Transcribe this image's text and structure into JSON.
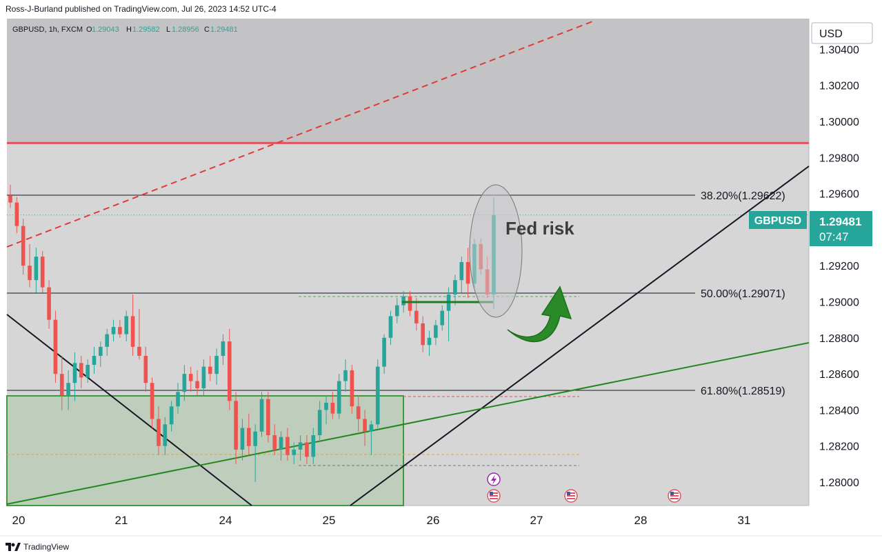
{
  "header": {
    "published_by": "Ross-J-Burland published on TradingView.com, Jul 26, 2023 14:52 UTC-4"
  },
  "footer": {
    "brand": "TradingView"
  },
  "legend": {
    "symbol_line": "GBPUSD, 1h, FXCM",
    "o_label": "O",
    "o_value": "1.29043",
    "h_label": "H",
    "h_value": "1.29582",
    "l_label": "L",
    "l_value": "1.28956",
    "c_label": "C",
    "c_value": "1.29481"
  },
  "currency": "USD",
  "price_badge": {
    "symbol": "GBPUSD",
    "price": "1.29481",
    "countdown": "07:47"
  },
  "annotation": {
    "text": "Fed risk"
  },
  "fib_levels": [
    {
      "label": "38.20%(1.29622)",
      "price": 1.29622
    },
    {
      "label": "50.00%(1.29071)",
      "price": 1.29071
    },
    {
      "label": "61.80%(1.28519)",
      "price": 1.28519
    }
  ],
  "chart_data": {
    "type": "candlestick",
    "symbol": "GBPUSD",
    "interval": "1h",
    "y_ticks": [
      "1.30400",
      "1.30200",
      "1.30000",
      "1.29800",
      "1.29600",
      "1.29400",
      "1.29200",
      "1.29000",
      "1.28800",
      "1.28600",
      "1.28400",
      "1.28200",
      "1.28000"
    ],
    "x_ticks": [
      "20",
      "21",
      "24",
      "25",
      "26",
      "27",
      "28",
      "31"
    ],
    "ylim": [
      1.2787,
      1.3057
    ],
    "resistance_price": 1.2988,
    "last_price": 1.29481,
    "candles": [
      {
        "o": 1.2959,
        "h": 1.2965,
        "l": 1.2952,
        "c": 1.2955
      },
      {
        "o": 1.2955,
        "h": 1.2958,
        "l": 1.2938,
        "c": 1.2942
      },
      {
        "o": 1.2942,
        "h": 1.2946,
        "l": 1.2915,
        "c": 1.292
      },
      {
        "o": 1.292,
        "h": 1.2932,
        "l": 1.2908,
        "c": 1.2912
      },
      {
        "o": 1.2912,
        "h": 1.293,
        "l": 1.2905,
        "c": 1.2925
      },
      {
        "o": 1.2925,
        "h": 1.2928,
        "l": 1.2905,
        "c": 1.2908
      },
      {
        "o": 1.2908,
        "h": 1.2912,
        "l": 1.2885,
        "c": 1.289
      },
      {
        "o": 1.289,
        "h": 1.2895,
        "l": 1.2855,
        "c": 1.286
      },
      {
        "o": 1.286,
        "h": 1.287,
        "l": 1.284,
        "c": 1.2848
      },
      {
        "o": 1.2848,
        "h": 1.2862,
        "l": 1.284,
        "c": 1.2855
      },
      {
        "o": 1.2855,
        "h": 1.2872,
        "l": 1.2845,
        "c": 1.2866
      },
      {
        "o": 1.2866,
        "h": 1.287,
        "l": 1.2852,
        "c": 1.2858
      },
      {
        "o": 1.2858,
        "h": 1.2868,
        "l": 1.2855,
        "c": 1.2865
      },
      {
        "o": 1.2865,
        "h": 1.2875,
        "l": 1.286,
        "c": 1.287
      },
      {
        "o": 1.287,
        "h": 1.2878,
        "l": 1.2864,
        "c": 1.2875
      },
      {
        "o": 1.2875,
        "h": 1.2885,
        "l": 1.287,
        "c": 1.2882
      },
      {
        "o": 1.2882,
        "h": 1.289,
        "l": 1.2878,
        "c": 1.2886
      },
      {
        "o": 1.2886,
        "h": 1.289,
        "l": 1.288,
        "c": 1.2882
      },
      {
        "o": 1.2882,
        "h": 1.2895,
        "l": 1.2878,
        "c": 1.2892
      },
      {
        "o": 1.2892,
        "h": 1.2904,
        "l": 1.287,
        "c": 1.2875
      },
      {
        "o": 1.2875,
        "h": 1.2896,
        "l": 1.2868,
        "c": 1.287
      },
      {
        "o": 1.287,
        "h": 1.2875,
        "l": 1.285,
        "c": 1.2855
      },
      {
        "o": 1.2855,
        "h": 1.2858,
        "l": 1.283,
        "c": 1.2835
      },
      {
        "o": 1.2835,
        "h": 1.2842,
        "l": 1.2815,
        "c": 1.282
      },
      {
        "o": 1.282,
        "h": 1.2836,
        "l": 1.2815,
        "c": 1.2832
      },
      {
        "o": 1.2832,
        "h": 1.2845,
        "l": 1.2828,
        "c": 1.2842
      },
      {
        "o": 1.2842,
        "h": 1.2855,
        "l": 1.2838,
        "c": 1.285
      },
      {
        "o": 1.285,
        "h": 1.2865,
        "l": 1.2845,
        "c": 1.286
      },
      {
        "o": 1.286,
        "h": 1.2864,
        "l": 1.285,
        "c": 1.2856
      },
      {
        "o": 1.2856,
        "h": 1.2862,
        "l": 1.2848,
        "c": 1.2852
      },
      {
        "o": 1.2852,
        "h": 1.2868,
        "l": 1.2848,
        "c": 1.2864
      },
      {
        "o": 1.2864,
        "h": 1.287,
        "l": 1.2856,
        "c": 1.286
      },
      {
        "o": 1.286,
        "h": 1.2874,
        "l": 1.2854,
        "c": 1.287
      },
      {
        "o": 1.287,
        "h": 1.2882,
        "l": 1.2865,
        "c": 1.2878
      },
      {
        "o": 1.2878,
        "h": 1.2885,
        "l": 1.284,
        "c": 1.2845
      },
      {
        "o": 1.2845,
        "h": 1.285,
        "l": 1.281,
        "c": 1.2818
      },
      {
        "o": 1.2818,
        "h": 1.2835,
        "l": 1.2812,
        "c": 1.283
      },
      {
        "o": 1.283,
        "h": 1.2838,
        "l": 1.2815,
        "c": 1.282
      },
      {
        "o": 1.282,
        "h": 1.2832,
        "l": 1.28,
        "c": 1.2828
      },
      {
        "o": 1.2828,
        "h": 1.285,
        "l": 1.2825,
        "c": 1.2846
      },
      {
        "o": 1.2846,
        "h": 1.285,
        "l": 1.2822,
        "c": 1.2826
      },
      {
        "o": 1.2826,
        "h": 1.2832,
        "l": 1.2815,
        "c": 1.2818
      },
      {
        "o": 1.2818,
        "h": 1.2828,
        "l": 1.2812,
        "c": 1.2825
      },
      {
        "o": 1.2825,
        "h": 1.283,
        "l": 1.2812,
        "c": 1.2815
      },
      {
        "o": 1.2815,
        "h": 1.2822,
        "l": 1.281,
        "c": 1.2818
      },
      {
        "o": 1.2818,
        "h": 1.2826,
        "l": 1.2812,
        "c": 1.2822
      },
      {
        "o": 1.2822,
        "h": 1.2826,
        "l": 1.281,
        "c": 1.2814
      },
      {
        "o": 1.2814,
        "h": 1.283,
        "l": 1.281,
        "c": 1.2826
      },
      {
        "o": 1.2826,
        "h": 1.2845,
        "l": 1.2822,
        "c": 1.284
      },
      {
        "o": 1.284,
        "h": 1.2848,
        "l": 1.2832,
        "c": 1.2844
      },
      {
        "o": 1.2844,
        "h": 1.285,
        "l": 1.2835,
        "c": 1.2838
      },
      {
        "o": 1.2838,
        "h": 1.286,
        "l": 1.2835,
        "c": 1.2856
      },
      {
        "o": 1.2856,
        "h": 1.2868,
        "l": 1.285,
        "c": 1.2862
      },
      {
        "o": 1.2862,
        "h": 1.2865,
        "l": 1.2838,
        "c": 1.2842
      },
      {
        "o": 1.2842,
        "h": 1.2848,
        "l": 1.2828,
        "c": 1.2835
      },
      {
        "o": 1.2835,
        "h": 1.284,
        "l": 1.282,
        "c": 1.2828
      },
      {
        "o": 1.2828,
        "h": 1.2834,
        "l": 1.2815,
        "c": 1.2832
      },
      {
        "o": 1.2832,
        "h": 1.2868,
        "l": 1.283,
        "c": 1.2864
      },
      {
        "o": 1.2864,
        "h": 1.2882,
        "l": 1.286,
        "c": 1.288
      },
      {
        "o": 1.288,
        "h": 1.2895,
        "l": 1.2876,
        "c": 1.2892
      },
      {
        "o": 1.2892,
        "h": 1.2902,
        "l": 1.2888,
        "c": 1.2898
      },
      {
        "o": 1.2898,
        "h": 1.2906,
        "l": 1.2894,
        "c": 1.2903
      },
      {
        "o": 1.2903,
        "h": 1.2906,
        "l": 1.2892,
        "c": 1.2895
      },
      {
        "o": 1.2895,
        "h": 1.2902,
        "l": 1.2884,
        "c": 1.2888
      },
      {
        "o": 1.2888,
        "h": 1.2892,
        "l": 1.2872,
        "c": 1.2876
      },
      {
        "o": 1.2876,
        "h": 1.2884,
        "l": 1.287,
        "c": 1.288
      },
      {
        "o": 1.288,
        "h": 1.289,
        "l": 1.2876,
        "c": 1.2887
      },
      {
        "o": 1.2887,
        "h": 1.2898,
        "l": 1.2884,
        "c": 1.2895
      },
      {
        "o": 1.2895,
        "h": 1.2908,
        "l": 1.2878,
        "c": 1.2904
      },
      {
        "o": 1.2904,
        "h": 1.2915,
        "l": 1.2898,
        "c": 1.2912
      },
      {
        "o": 1.2912,
        "h": 1.2925,
        "l": 1.2905,
        "c": 1.2922
      },
      {
        "o": 1.2922,
        "h": 1.293,
        "l": 1.2902,
        "c": 1.291
      },
      {
        "o": 1.291,
        "h": 1.2935,
        "l": 1.2908,
        "c": 1.2932
      },
      {
        "o": 1.2932,
        "h": 1.2935,
        "l": 1.2915,
        "c": 1.2918
      },
      {
        "o": 1.2918,
        "h": 1.2925,
        "l": 1.2902,
        "c": 1.2904
      },
      {
        "o": 1.2904,
        "h": 1.2958,
        "l": 1.2896,
        "c": 1.2948
      }
    ]
  }
}
